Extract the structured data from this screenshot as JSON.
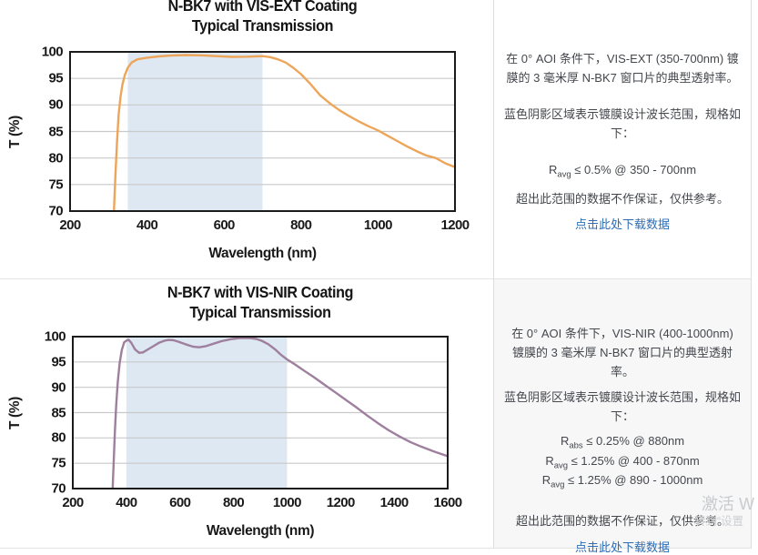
{
  "chart_data": [
    {
      "type": "line",
      "title": "N-BK7 with VIS-EXT Coating",
      "subtitle": "Typical Transmission",
      "xlabel": "Wavelength (nm)",
      "ylabel": "T (%)",
      "xlim": [
        200,
        1200
      ],
      "ylim": [
        70,
        100
      ],
      "xticks": [
        200,
        400,
        600,
        800,
        1000,
        1200
      ],
      "yticks": [
        70,
        75,
        80,
        85,
        90,
        95,
        100
      ],
      "grid": "horizontal",
      "legend": "none",
      "design_band_nm": [
        350,
        700
      ],
      "band_color": "#dde8f2",
      "line_color": "#eda55a",
      "series": [
        {
          "name": "Typical Transmission",
          "x": [
            314,
            318,
            322,
            326,
            331,
            336,
            342,
            350,
            360,
            375,
            400,
            430,
            460,
            500,
            540,
            580,
            620,
            660,
            700,
            720,
            740,
            760,
            780,
            800,
            825,
            850,
            875,
            900,
            925,
            950,
            975,
            1000,
            1025,
            1050,
            1075,
            1100,
            1125,
            1150,
            1175,
            1200
          ],
          "y": [
            70,
            77,
            83,
            88,
            91.5,
            93.8,
            95.6,
            97.0,
            98.0,
            98.6,
            98.9,
            99.15,
            99.3,
            99.4,
            99.35,
            99.2,
            99.05,
            99.1,
            99.2,
            99.0,
            98.6,
            98.0,
            97.0,
            95.8,
            93.9,
            91.8,
            90.3,
            89.0,
            87.9,
            86.9,
            86.0,
            85.2,
            84.2,
            83.2,
            82.2,
            81.3,
            80.5,
            80.0,
            79.0,
            78.3
          ]
        }
      ]
    },
    {
      "type": "line",
      "title": "N-BK7 with VIS-NIR Coating",
      "subtitle": "Typical Transmission",
      "xlabel": "Wavelength (nm)",
      "ylabel": "T (%)",
      "xlim": [
        200,
        1600
      ],
      "ylim": [
        70,
        100
      ],
      "xticks": [
        200,
        400,
        600,
        800,
        1000,
        1200,
        1400,
        1600
      ],
      "yticks": [
        70,
        75,
        80,
        85,
        90,
        95,
        100
      ],
      "grid": "horizontal",
      "legend": "none",
      "design_band_nm": [
        400,
        1000
      ],
      "band_color": "#dde8f2",
      "line_color": "#9e7f9e",
      "series": [
        {
          "name": "Typical Transmission",
          "x": [
            349,
            353,
            357,
            362,
            368,
            375,
            383,
            392,
            400,
            408,
            418,
            432,
            448,
            462,
            478,
            500,
            522,
            542,
            558,
            575,
            595,
            620,
            650,
            672,
            695,
            725,
            755,
            790,
            820,
            845,
            865,
            885,
            905,
            930,
            955,
            980,
            1000,
            1030,
            1060,
            1100,
            1140,
            1180,
            1220,
            1260,
            1300,
            1340,
            1380,
            1420,
            1460,
            1500,
            1550,
            1600
          ],
          "y": [
            70,
            75.5,
            81,
            86.5,
            91,
            94.8,
            97.4,
            98.9,
            99.2,
            99.4,
            98.8,
            97.5,
            96.8,
            96.9,
            97.4,
            98.1,
            98.8,
            99.2,
            99.35,
            99.3,
            99.0,
            98.5,
            98.0,
            97.9,
            98.1,
            98.6,
            99.1,
            99.5,
            99.7,
            99.75,
            99.7,
            99.55,
            99.2,
            98.5,
            97.5,
            96.3,
            95.5,
            94.5,
            93.4,
            92.0,
            90.5,
            89.0,
            87.5,
            86.0,
            84.4,
            82.9,
            81.5,
            80.3,
            79.2,
            78.3,
            77.3,
            76.4
          ]
        }
      ]
    }
  ],
  "panels": [
    {
      "description": "在 0° AOI 条件下，VIS-EXT (350-700nm) 镀膜的 3 毫米厚 N-BK7 窗口片的典型透射率。",
      "band_note": "蓝色阴影区域表示镀膜设计波长范围，规格如下：",
      "specs": [
        {
          "base": "R",
          "sub": "avg",
          "rest": " ≤ 0.5% @ 350 - 700nm"
        }
      ],
      "disclaimer": "超出此范围的数据不作保证，仅供参考。",
      "download_link": "点击此处下载数据",
      "link_color": "#2e6db4"
    },
    {
      "description": "在 0° AOI 条件下，VIS-NIR (400-1000nm) 镀膜的 3 毫米厚 N-BK7 窗口片的典型透射率。",
      "band_note": "蓝色阴影区域表示镀膜设计波长范围，规格如下：",
      "specs": [
        {
          "base": "R",
          "sub": "abs",
          "rest": " ≤ 0.25% @ 880nm"
        },
        {
          "base": "R",
          "sub": "avg",
          "rest": " ≤ 1.25% @ 400 - 870nm"
        },
        {
          "base": "R",
          "sub": "avg",
          "rest": " ≤ 1.25% @ 890 - 1000nm"
        }
      ],
      "disclaimer": "超出此范围的数据不作保证，仅供参考。",
      "download_link": "点击此处下载数据",
      "link_color": "#2e6db4"
    }
  ],
  "watermark": {
    "line1": "激活 W",
    "line2": "转到“设置"
  }
}
